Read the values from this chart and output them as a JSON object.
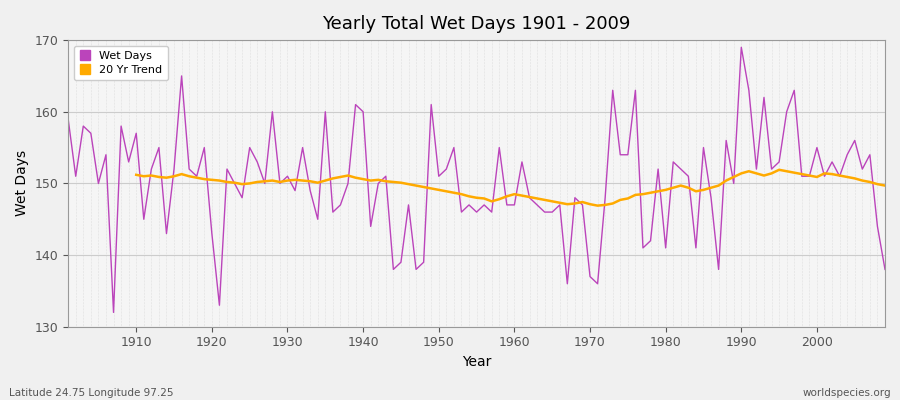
{
  "title": "Yearly Total Wet Days 1901 - 2009",
  "xlabel": "Year",
  "ylabel": "Wet Days",
  "footnote_left": "Latitude 24.75 Longitude 97.25",
  "footnote_right": "worldspecies.org",
  "legend_wet": "Wet Days",
  "legend_trend": "20 Yr Trend",
  "wet_color": "#bb44bb",
  "trend_color": "#ffaa00",
  "background_color": "#f0f0f0",
  "plot_bg_color": "#f5f5f5",
  "ylim": [
    130,
    170
  ],
  "yticks": [
    130,
    140,
    150,
    160,
    170
  ],
  "years": [
    1901,
    1902,
    1903,
    1904,
    1905,
    1906,
    1907,
    1908,
    1909,
    1910,
    1911,
    1912,
    1913,
    1914,
    1915,
    1916,
    1917,
    1918,
    1919,
    1920,
    1921,
    1922,
    1923,
    1924,
    1925,
    1926,
    1927,
    1928,
    1929,
    1930,
    1931,
    1932,
    1933,
    1934,
    1935,
    1936,
    1937,
    1938,
    1939,
    1940,
    1941,
    1942,
    1943,
    1944,
    1945,
    1946,
    1947,
    1948,
    1949,
    1950,
    1951,
    1952,
    1953,
    1954,
    1955,
    1956,
    1957,
    1958,
    1959,
    1960,
    1961,
    1962,
    1963,
    1964,
    1965,
    1966,
    1967,
    1968,
    1969,
    1970,
    1971,
    1972,
    1973,
    1974,
    1975,
    1976,
    1977,
    1978,
    1979,
    1980,
    1981,
    1982,
    1983,
    1984,
    1985,
    1986,
    1987,
    1988,
    1989,
    1990,
    1991,
    1992,
    1993,
    1994,
    1995,
    1996,
    1997,
    1998,
    1999,
    2000,
    2001,
    2002,
    2003,
    2004,
    2005,
    2006,
    2007,
    2008,
    2009
  ],
  "wet_days": [
    159,
    151,
    158,
    157,
    150,
    154,
    132,
    158,
    153,
    157,
    145,
    152,
    155,
    143,
    152,
    165,
    152,
    151,
    155,
    143,
    133,
    152,
    150,
    148,
    155,
    153,
    150,
    160,
    150,
    151,
    149,
    155,
    149,
    145,
    160,
    146,
    147,
    150,
    161,
    160,
    144,
    150,
    151,
    138,
    139,
    147,
    138,
    139,
    161,
    151,
    152,
    155,
    146,
    147,
    146,
    147,
    146,
    155,
    147,
    147,
    153,
    148,
    147,
    146,
    146,
    147,
    136,
    148,
    147,
    137,
    136,
    148,
    163,
    154,
    154,
    163,
    141,
    142,
    152,
    141,
    153,
    152,
    151,
    141,
    155,
    148,
    138,
    156,
    150,
    169,
    163,
    152,
    162,
    152,
    153,
    160,
    163,
    151,
    151,
    155,
    151,
    153,
    151,
    154,
    156,
    152,
    154,
    144,
    138
  ],
  "trend_years": [
    1910,
    1911,
    1912,
    1913,
    1914,
    1915,
    1916,
    1917,
    1918,
    1919,
    1920,
    1921,
    1922,
    1923,
    1924,
    1925,
    1926,
    1927,
    1928,
    1929,
    1930,
    1931,
    1932,
    1933,
    1934,
    1935,
    1936,
    1937,
    1938,
    1939,
    1940,
    1941,
    1942,
    1943,
    1944,
    1945,
    1946,
    1947,
    1948,
    1949,
    1950,
    1951,
    1952,
    1953,
    1954,
    1955,
    1956,
    1957,
    1958,
    1959,
    1960,
    1961,
    1962,
    1963,
    1964,
    1965,
    1966,
    1967,
    1968,
    1969,
    1970,
    1971,
    1972,
    1973,
    1974,
    1975,
    1976,
    1977,
    1978,
    1979,
    1980,
    1981,
    1982,
    1983,
    1984,
    1985,
    1986,
    1987,
    1988,
    1989,
    1990,
    1991,
    1992,
    1993,
    1994,
    1995,
    1996,
    1997,
    1998,
    1999,
    2000,
    2001,
    2002,
    2003,
    2004,
    2005,
    2006,
    2007,
    2008,
    2009
  ],
  "trend_vals": [
    151.2,
    151.0,
    151.1,
    150.9,
    150.8,
    151.0,
    151.3,
    151.0,
    150.8,
    150.6,
    150.5,
    150.4,
    150.2,
    150.1,
    149.9,
    150.0,
    150.2,
    150.3,
    150.4,
    150.2,
    150.4,
    150.5,
    150.4,
    150.3,
    150.1,
    150.4,
    150.7,
    150.9,
    151.1,
    150.8,
    150.6,
    150.4,
    150.5,
    150.3,
    150.2,
    150.1,
    149.9,
    149.7,
    149.5,
    149.3,
    149.1,
    148.9,
    148.7,
    148.5,
    148.2,
    148.0,
    147.9,
    147.5,
    147.8,
    148.2,
    148.5,
    148.3,
    148.1,
    147.9,
    147.7,
    147.5,
    147.3,
    147.1,
    147.2,
    147.4,
    147.1,
    146.9,
    147.0,
    147.2,
    147.7,
    147.9,
    148.4,
    148.5,
    148.7,
    148.9,
    149.1,
    149.4,
    149.7,
    149.4,
    148.9,
    149.1,
    149.4,
    149.7,
    150.4,
    150.9,
    151.4,
    151.7,
    151.4,
    151.1,
    151.4,
    151.9,
    151.7,
    151.5,
    151.3,
    151.1,
    150.9,
    151.4,
    151.3,
    151.1,
    150.9,
    150.7,
    150.4,
    150.2,
    149.9,
    149.7
  ]
}
